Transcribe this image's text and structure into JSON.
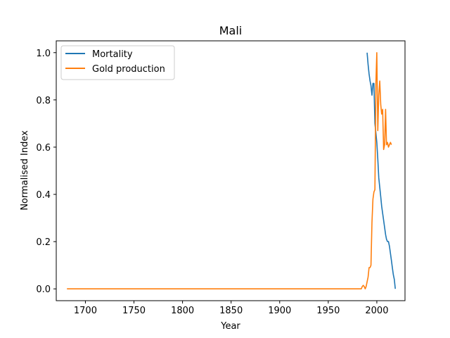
{
  "chart_data": {
    "type": "line",
    "title": "Mali",
    "xlabel": "Year",
    "ylabel": "Normalised Index",
    "xlim": [
      1670,
      2029
    ],
    "ylim": [
      -0.05,
      1.05
    ],
    "xticks": [
      1700,
      1750,
      1800,
      1850,
      1900,
      1950,
      2000
    ],
    "yticks": [
      0.0,
      0.2,
      0.4,
      0.6,
      0.8,
      1.0
    ],
    "xtick_labels": [
      "1700",
      "1750",
      "1800",
      "1850",
      "1900",
      "1950",
      "2000"
    ],
    "ytick_labels": [
      "0.0",
      "0.2",
      "0.4",
      "0.6",
      "0.8",
      "1.0"
    ],
    "grid": false,
    "legend_position": "top-left",
    "series": [
      {
        "name": "Mortality",
        "color": "#1f77b4",
        "x": [
          1990,
          1991,
          1992,
          1993,
          1994,
          1995,
          1996,
          1997,
          1998,
          1999,
          2000,
          2001,
          2002,
          2003,
          2004,
          2005,
          2006,
          2007,
          2008,
          2009,
          2010,
          2011,
          2012,
          2013,
          2014,
          2015,
          2016,
          2017,
          2018,
          2019
        ],
        "y": [
          1.0,
          0.95,
          0.91,
          0.88,
          0.86,
          0.82,
          0.87,
          0.87,
          0.7,
          0.66,
          0.62,
          0.55,
          0.47,
          0.43,
          0.39,
          0.35,
          0.32,
          0.29,
          0.26,
          0.23,
          0.21,
          0.2,
          0.2,
          0.18,
          0.15,
          0.12,
          0.09,
          0.06,
          0.04,
          0.0
        ]
      },
      {
        "name": "Gold production",
        "color": "#ff7f0e",
        "x": [
          1681,
          1700,
          1750,
          1800,
          1850,
          1900,
          1950,
          1983,
          1984,
          1985,
          1986,
          1987,
          1988,
          1989,
          1990,
          1991,
          1992,
          1993,
          1994,
          1995,
          1996,
          1997,
          1998,
          1999,
          2000,
          2001,
          2002,
          2003,
          2004,
          2005,
          2006,
          2007,
          2008,
          2009,
          2010,
          2011,
          2012,
          2013,
          2014,
          2015
        ],
        "y": [
          0.0,
          0.0,
          0.0,
          0.0,
          0.0,
          0.0,
          0.0,
          0.0,
          0.0,
          0.01,
          0.015,
          0.01,
          0.0,
          0.01,
          0.03,
          0.05,
          0.09,
          0.09,
          0.1,
          0.28,
          0.38,
          0.41,
          0.42,
          0.87,
          1.0,
          0.67,
          0.82,
          0.88,
          0.78,
          0.74,
          0.76,
          0.59,
          0.61,
          0.76,
          0.61,
          0.62,
          0.6,
          0.61,
          0.62,
          0.61
        ]
      }
    ]
  }
}
